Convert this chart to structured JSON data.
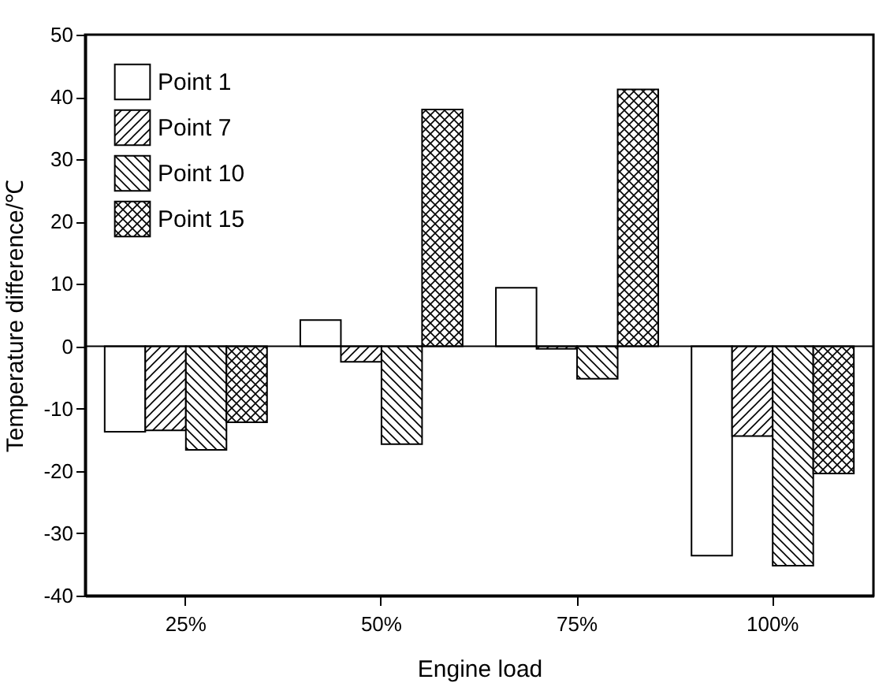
{
  "chart_data": {
    "type": "bar",
    "xlabel": "Engine load",
    "ylabel": "Temperature difference/℃",
    "categories": [
      "25%",
      "50%",
      "75%",
      "100%"
    ],
    "series": [
      {
        "name": "Point 1",
        "color": "#000000",
        "values": [
          -13.7,
          4.2,
          9.4,
          -33.6
        ]
      },
      {
        "name": "Point 7",
        "color": "#000000",
        "values": [
          -13.5,
          -2.5,
          -0.4,
          -14.4
        ]
      },
      {
        "name": "Point 10",
        "color": "#000000",
        "values": [
          -16.6,
          -15.7,
          -5.2,
          -35.2
        ]
      },
      {
        "name": "Point 15",
        "color": "#000000",
        "values": [
          -12.2,
          38,
          41.2,
          -20.4
        ]
      }
    ],
    "ylim": [
      -40,
      50
    ],
    "yticks": [
      -40,
      -30,
      -20,
      -10,
      0,
      10,
      20,
      30,
      40,
      50
    ],
    "ref_lines": [
      {
        "axis": "y",
        "value": 0,
        "color": "#000000"
      }
    ],
    "grid": false,
    "legend": "top left"
  }
}
